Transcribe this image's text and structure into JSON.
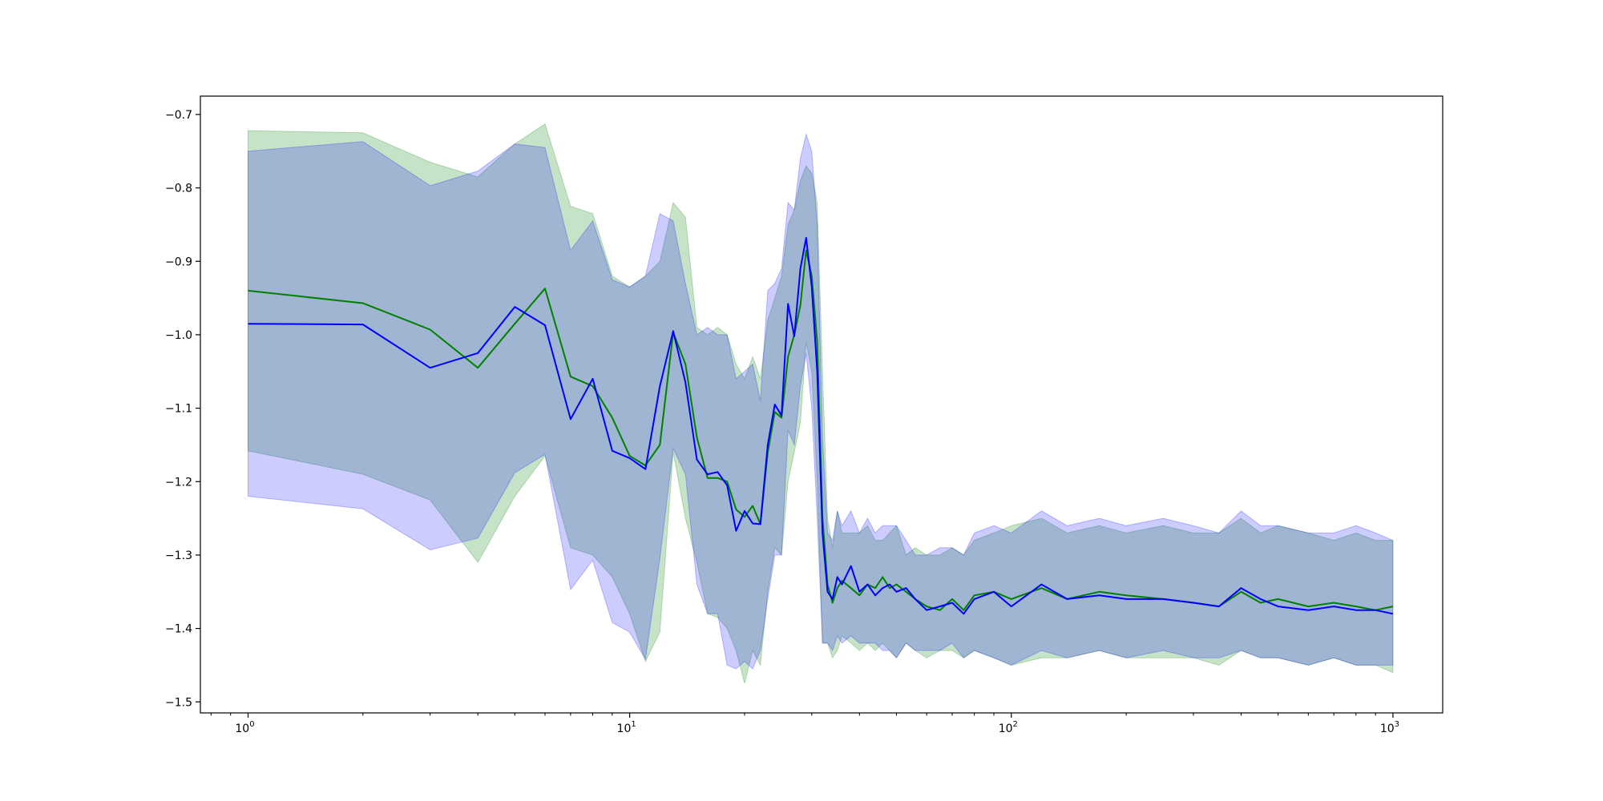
{
  "chart_data": {
    "type": "line",
    "title": "",
    "xlabel": "",
    "ylabel": "",
    "xscale": "log",
    "xlim": [
      0.75,
      1350
    ],
    "ylim": [
      -1.515,
      -0.675
    ],
    "grid": false,
    "legend": "none",
    "x_ticks": [
      {
        "base": "10",
        "exp": "0",
        "value": 1
      },
      {
        "base": "10",
        "exp": "1",
        "value": 10
      },
      {
        "base": "10",
        "exp": "2",
        "value": 100
      },
      {
        "base": "10",
        "exp": "3",
        "value": 1000
      }
    ],
    "y_ticks": [
      {
        "label": "−0.7",
        "value": -0.7
      },
      {
        "label": "−0.8",
        "value": -0.8
      },
      {
        "label": "−0.9",
        "value": -0.9
      },
      {
        "label": "−1.0",
        "value": -1.0
      },
      {
        "label": "−1.1",
        "value": -1.1
      },
      {
        "label": "−1.2",
        "value": -1.2
      },
      {
        "label": "−1.3",
        "value": -1.3
      },
      {
        "label": "−1.4",
        "value": -1.4
      },
      {
        "label": "−1.5",
        "value": -1.5
      }
    ],
    "series": [
      {
        "color": "#008000",
        "band_color": "#008000",
        "band_opacity": 0.22,
        "x": [
          1,
          2,
          3,
          4,
          5,
          6,
          7,
          8,
          9,
          10,
          11,
          12,
          13,
          14,
          15,
          16,
          17,
          18,
          19,
          20,
          21,
          22,
          23,
          24,
          25,
          26,
          27,
          28,
          29,
          30,
          31,
          32,
          33,
          34,
          35,
          36,
          38,
          40,
          42,
          44,
          46,
          48,
          50,
          53,
          56,
          60,
          65,
          70,
          75,
          80,
          90,
          100,
          120,
          140,
          170,
          200,
          250,
          300,
          350,
          400,
          450,
          500,
          600,
          700,
          800,
          900,
          1000
        ],
        "y": [
          -0.94,
          -0.957,
          -0.993,
          -1.045,
          -0.985,
          -0.937,
          -1.057,
          -1.07,
          -1.113,
          -1.165,
          -1.178,
          -1.15,
          -0.997,
          -1.04,
          -1.14,
          -1.195,
          -1.195,
          -1.2,
          -1.238,
          -1.248,
          -1.233,
          -1.258,
          -1.16,
          -1.105,
          -1.113,
          -1.03,
          -1.0,
          -0.96,
          -0.885,
          -0.92,
          -1.01,
          -1.25,
          -1.34,
          -1.365,
          -1.345,
          -1.335,
          -1.345,
          -1.355,
          -1.34,
          -1.345,
          -1.33,
          -1.345,
          -1.34,
          -1.35,
          -1.36,
          -1.37,
          -1.375,
          -1.36,
          -1.375,
          -1.355,
          -1.35,
          -1.36,
          -1.345,
          -1.36,
          -1.35,
          -1.355,
          -1.36,
          -1.365,
          -1.37,
          -1.35,
          -1.365,
          -1.36,
          -1.37,
          -1.365,
          -1.37,
          -1.375,
          -1.37
        ],
        "upper": [
          -0.722,
          -0.725,
          -0.765,
          -0.785,
          -0.74,
          -0.713,
          -0.825,
          -0.835,
          -0.92,
          -0.935,
          -0.92,
          -0.9,
          -0.82,
          -0.84,
          -0.99,
          -1.0,
          -0.99,
          -1.0,
          -1.04,
          -1.06,
          -1.03,
          -1.06,
          -0.98,
          -0.95,
          -0.92,
          -0.85,
          -0.83,
          -0.79,
          -0.77,
          -0.78,
          -0.82,
          -1.05,
          -1.25,
          -1.29,
          -1.24,
          -1.27,
          -1.27,
          -1.27,
          -1.26,
          -1.28,
          -1.28,
          -1.27,
          -1.26,
          -1.3,
          -1.29,
          -1.3,
          -1.3,
          -1.29,
          -1.3,
          -1.28,
          -1.27,
          -1.26,
          -1.25,
          -1.27,
          -1.26,
          -1.27,
          -1.26,
          -1.27,
          -1.27,
          -1.25,
          -1.27,
          -1.26,
          -1.27,
          -1.28,
          -1.27,
          -1.28,
          -1.28
        ],
        "lower": [
          -1.158,
          -1.19,
          -1.225,
          -1.31,
          -1.22,
          -1.165,
          -1.29,
          -1.3,
          -1.33,
          -1.38,
          -1.445,
          -1.405,
          -1.16,
          -1.25,
          -1.31,
          -1.38,
          -1.385,
          -1.4,
          -1.43,
          -1.475,
          -1.43,
          -1.45,
          -1.35,
          -1.29,
          -1.3,
          -1.2,
          -1.16,
          -1.12,
          -1.01,
          -1.05,
          -1.2,
          -1.42,
          -1.42,
          -1.44,
          -1.43,
          -1.41,
          -1.42,
          -1.43,
          -1.42,
          -1.43,
          -1.42,
          -1.43,
          -1.44,
          -1.42,
          -1.43,
          -1.44,
          -1.43,
          -1.43,
          -1.44,
          -1.43,
          -1.44,
          -1.45,
          -1.44,
          -1.44,
          -1.43,
          -1.44,
          -1.44,
          -1.44,
          -1.45,
          -1.43,
          -1.44,
          -1.44,
          -1.45,
          -1.44,
          -1.45,
          -1.45,
          -1.46
        ]
      },
      {
        "color": "#0000ff",
        "band_color": "#0000ff",
        "band_opacity": 0.2,
        "x": [
          1,
          2,
          3,
          4,
          5,
          6,
          7,
          8,
          9,
          10,
          11,
          12,
          13,
          14,
          15,
          16,
          17,
          18,
          19,
          20,
          21,
          22,
          23,
          24,
          25,
          26,
          27,
          28,
          29,
          30,
          31,
          32,
          33,
          34,
          35,
          36,
          38,
          40,
          42,
          44,
          46,
          48,
          50,
          53,
          56,
          60,
          65,
          70,
          75,
          80,
          90,
          100,
          120,
          140,
          170,
          200,
          250,
          300,
          350,
          400,
          450,
          500,
          600,
          700,
          800,
          900,
          1000
        ],
        "y": [
          -0.985,
          -0.986,
          -1.045,
          -1.025,
          -0.962,
          -0.987,
          -1.115,
          -1.06,
          -1.158,
          -1.168,
          -1.183,
          -1.07,
          -0.995,
          -1.065,
          -1.17,
          -1.19,
          -1.187,
          -1.205,
          -1.267,
          -1.24,
          -1.257,
          -1.258,
          -1.15,
          -1.095,
          -1.11,
          -0.958,
          -1.002,
          -0.91,
          -0.868,
          -0.935,
          -1.05,
          -1.27,
          -1.35,
          -1.36,
          -1.33,
          -1.34,
          -1.315,
          -1.35,
          -1.34,
          -1.355,
          -1.345,
          -1.34,
          -1.35,
          -1.345,
          -1.36,
          -1.375,
          -1.37,
          -1.365,
          -1.38,
          -1.36,
          -1.35,
          -1.37,
          -1.34,
          -1.36,
          -1.355,
          -1.36,
          -1.36,
          -1.365,
          -1.37,
          -1.345,
          -1.36,
          -1.37,
          -1.375,
          -1.37,
          -1.375,
          -1.375,
          -1.38
        ],
        "upper": [
          -0.75,
          -0.737,
          -0.797,
          -0.777,
          -0.74,
          -0.745,
          -0.885,
          -0.845,
          -0.925,
          -0.935,
          -0.92,
          -0.835,
          -0.845,
          -0.93,
          -1.0,
          -0.99,
          -1.0,
          -1.0,
          -1.06,
          -1.05,
          -1.04,
          -1.09,
          -0.94,
          -0.93,
          -0.91,
          -0.82,
          -0.83,
          -0.76,
          -0.727,
          -0.75,
          -0.85,
          -1.14,
          -1.27,
          -1.28,
          -1.24,
          -1.26,
          -1.24,
          -1.27,
          -1.25,
          -1.27,
          -1.26,
          -1.26,
          -1.26,
          -1.28,
          -1.3,
          -1.3,
          -1.29,
          -1.29,
          -1.3,
          -1.27,
          -1.26,
          -1.27,
          -1.24,
          -1.26,
          -1.25,
          -1.26,
          -1.25,
          -1.26,
          -1.27,
          -1.24,
          -1.26,
          -1.26,
          -1.27,
          -1.27,
          -1.26,
          -1.27,
          -1.28
        ],
        "lower": [
          -1.22,
          -1.237,
          -1.293,
          -1.277,
          -1.188,
          -1.163,
          -1.347,
          -1.307,
          -1.392,
          -1.405,
          -1.442,
          -1.305,
          -1.155,
          -1.19,
          -1.34,
          -1.38,
          -1.38,
          -1.45,
          -1.455,
          -1.445,
          -1.455,
          -1.43,
          -1.36,
          -1.3,
          -1.3,
          -1.13,
          -1.15,
          -1.07,
          -1.025,
          -1.1,
          -1.25,
          -1.42,
          -1.42,
          -1.43,
          -1.41,
          -1.42,
          -1.41,
          -1.42,
          -1.42,
          -1.42,
          -1.43,
          -1.43,
          -1.44,
          -1.42,
          -1.43,
          -1.43,
          -1.43,
          -1.42,
          -1.44,
          -1.43,
          -1.44,
          -1.45,
          -1.43,
          -1.44,
          -1.43,
          -1.44,
          -1.43,
          -1.44,
          -1.44,
          -1.43,
          -1.44,
          -1.44,
          -1.45,
          -1.44,
          -1.45,
          -1.45,
          -1.45
        ]
      }
    ]
  }
}
